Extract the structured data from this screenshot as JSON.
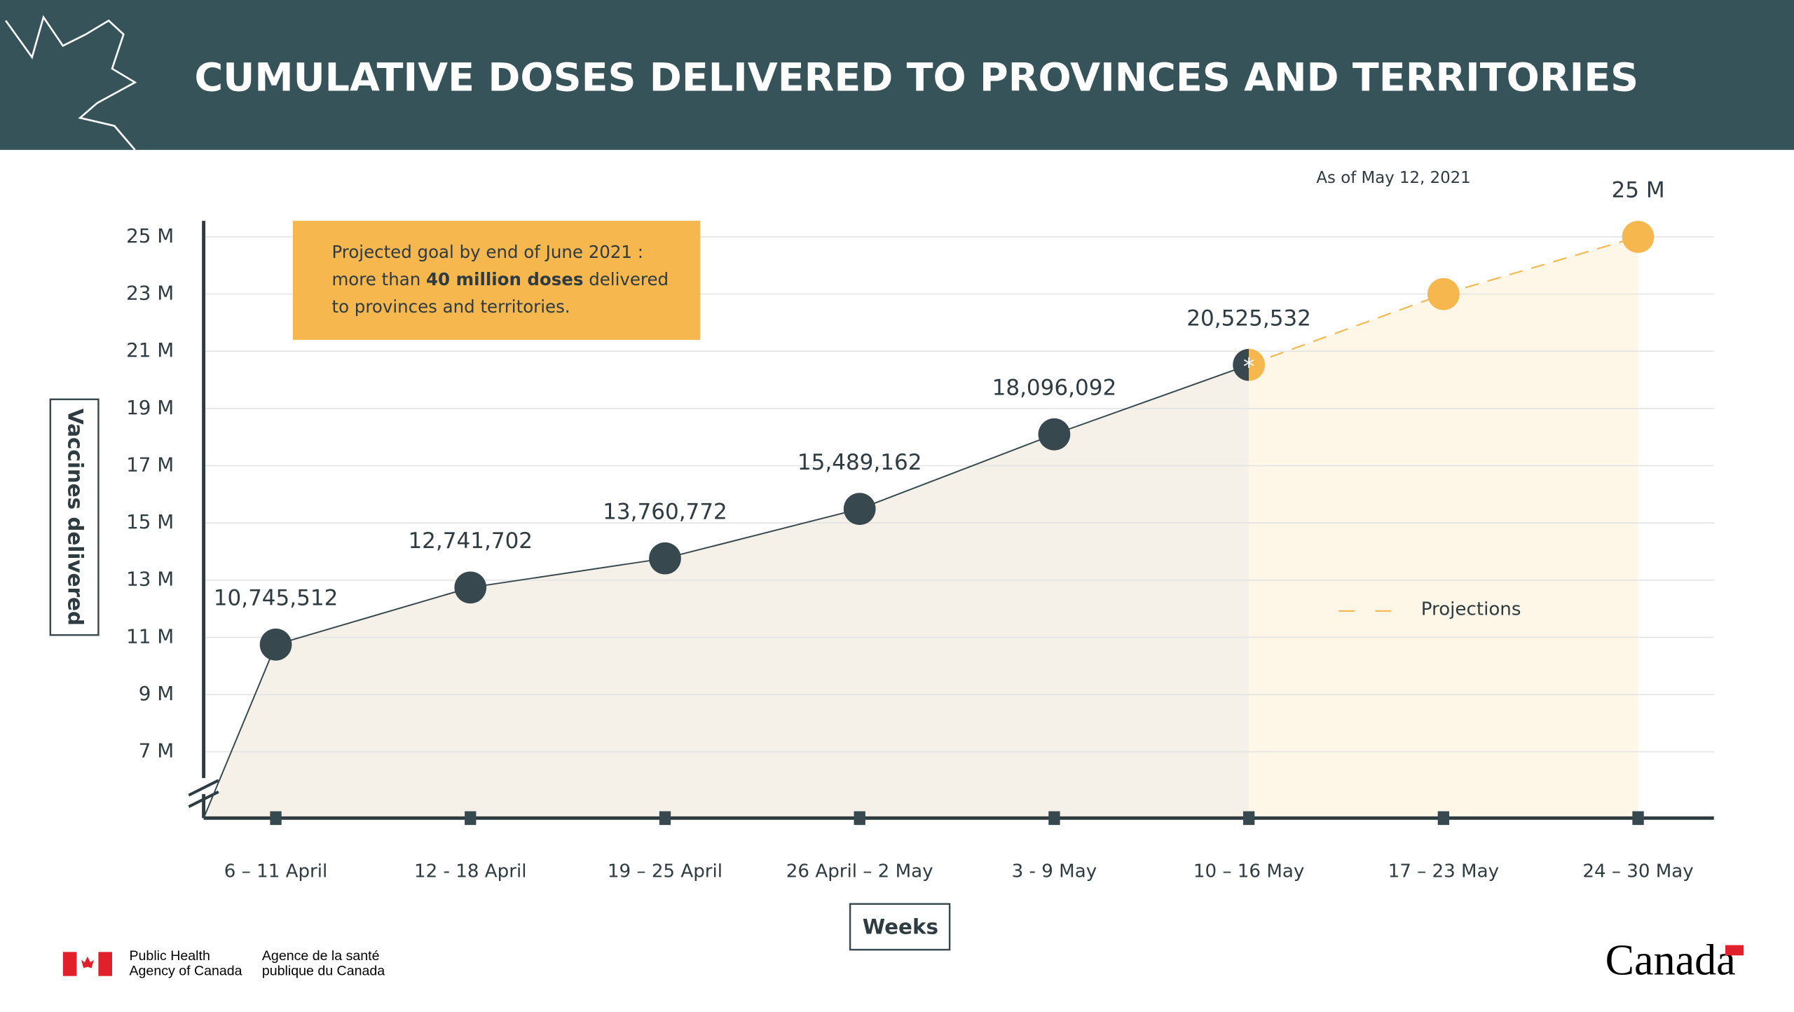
{
  "header": {
    "title": "CUMULATIVE DOSES DELIVERED TO PROVINCES AND TERRITORIES"
  },
  "chart_data": {
    "type": "line",
    "subtitle": "As of May 12, 2021",
    "annotation": {
      "line1": "Projected goal by end of June 2021 :",
      "line2a": "more than ",
      "line2b": "40 million doses",
      "line2c": " delivered",
      "line3": "to provinces and territories."
    },
    "categories": [
      "6 – 11 April",
      "12 - 18  April",
      "19 – 25 April",
      "26 April – 2 May",
      "3 - 9  May",
      "10 – 16 May",
      "17 – 23 May",
      "24 – 30 May"
    ],
    "series": [
      {
        "color": "#37494f",
        "values": [
          10745512,
          12741702,
          13760772,
          15489162,
          18096092,
          20525532,
          null,
          null
        ],
        "value_labels": [
          "10,745,512",
          "12,741,702",
          "13,760,772",
          "15,489,162",
          "18,096,092",
          "20,525,532",
          null,
          null
        ]
      },
      {
        "name": "Projections",
        "color": "#f5b74e",
        "dashed": true,
        "values": [
          null,
          null,
          null,
          null,
          null,
          null,
          23000000,
          25000000
        ],
        "value_labels": [
          null,
          null,
          null,
          null,
          null,
          null,
          null,
          "25 M"
        ]
      }
    ],
    "x_label": "Weeks",
    "y_label": "Vaccines delivered",
    "ylim": [
      4680000,
      25720000
    ],
    "yticks": [
      {
        "value": 7000000,
        "label": "7 M"
      },
      {
        "value": 9000000,
        "label": "9 M"
      },
      {
        "value": 11000000,
        "label": "11 M"
      },
      {
        "value": 13000000,
        "label": "13 M"
      },
      {
        "value": 15000000,
        "label": "15 M"
      },
      {
        "value": 17000000,
        "label": "17 M"
      },
      {
        "value": 19000000,
        "label": "19 M"
      },
      {
        "value": 21000000,
        "label": "21 M"
      },
      {
        "value": 23000000,
        "label": "23 M"
      },
      {
        "value": 25000000,
        "label": "25 M"
      }
    ],
    "grid": true
  },
  "footer": {
    "en1": "Public Health",
    "en2": "Agency of Canada",
    "fr1": "Agence de la santé",
    "fr2": "publique du Canada",
    "wordmark": "Canada"
  }
}
